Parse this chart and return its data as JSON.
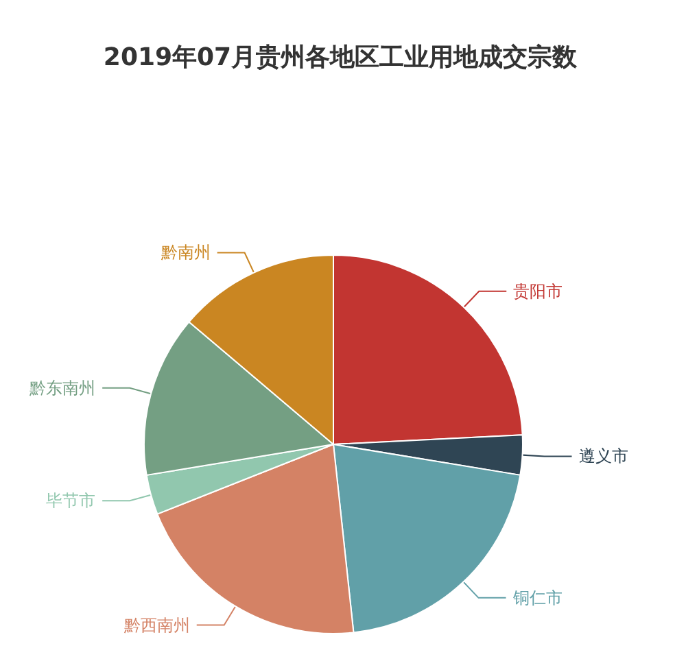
{
  "chart_data": {
    "type": "pie",
    "title": "2019年07月贵州各地区工业用地成交宗数",
    "categories": [
      "贵阳市",
      "遵义市",
      "铜仁市",
      "黔西南州",
      "毕节市",
      "黔东南州",
      "黔南州"
    ],
    "values": [
      24.2,
      3.4,
      20.7,
      20.7,
      3.4,
      13.8,
      13.8
    ],
    "colors": [
      "#c23531",
      "#2f4554",
      "#61a0a8",
      "#d48265",
      "#91c7ae",
      "#749f83",
      "#ca8622"
    ]
  }
}
